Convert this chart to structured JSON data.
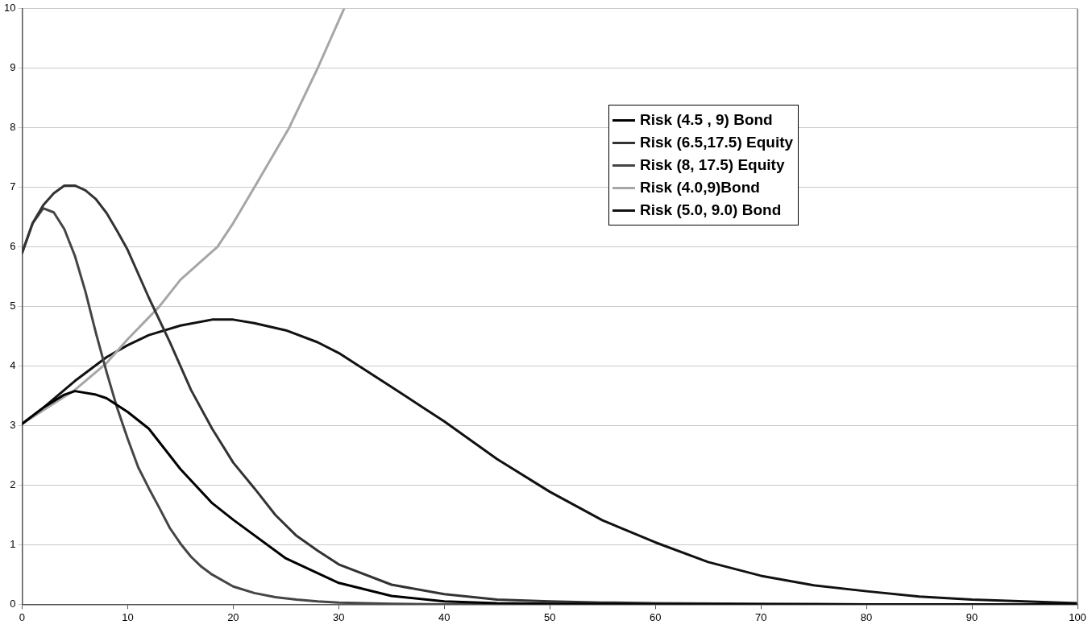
{
  "chart_data": {
    "type": "line",
    "xlim": [
      0,
      100
    ],
    "ylim": [
      0,
      10
    ],
    "xticks": [
      0,
      10,
      20,
      30,
      40,
      50,
      60,
      70,
      80,
      90,
      100
    ],
    "yticks": [
      0,
      1,
      2,
      3,
      4,
      5,
      6,
      7,
      8,
      9,
      10
    ],
    "grid": "y",
    "legend": "top right",
    "marker": "none",
    "line_style": "solid",
    "series": [
      {
        "name": "Risk (4.5 , 9) Bond",
        "color": "#000000",
        "x": [
          0,
          2,
          4,
          5,
          7,
          8,
          10,
          12,
          15,
          18,
          20,
          25,
          30,
          35,
          40,
          45,
          50,
          60,
          70,
          80,
          90,
          100
        ],
        "values": [
          3.03,
          3.3,
          3.52,
          3.58,
          3.52,
          3.46,
          3.23,
          2.95,
          2.27,
          1.7,
          1.42,
          0.77,
          0.36,
          0.14,
          0.05,
          0.02,
          0.01,
          0,
          0,
          0,
          0,
          0
        ]
      },
      {
        "name": "Risk (6.5,17.5) Equity",
        "color": "#333333",
        "x": [
          0,
          1,
          2,
          3,
          4,
          5,
          6,
          7,
          8,
          9,
          10,
          12,
          14,
          16,
          18,
          20,
          22,
          24,
          26,
          28,
          30,
          35,
          40,
          45,
          50,
          55,
          60,
          70,
          80,
          90,
          100
        ],
        "values": [
          5.9,
          6.4,
          6.7,
          6.9,
          7.03,
          7.03,
          6.95,
          6.8,
          6.57,
          6.27,
          5.95,
          5.15,
          4.4,
          3.6,
          2.95,
          2.38,
          1.95,
          1.5,
          1.15,
          0.9,
          0.67,
          0.33,
          0.17,
          0.08,
          0.05,
          0.03,
          0.02,
          0.01,
          0,
          0,
          0
        ]
      },
      {
        "name": "Risk (8, 17.5) Equity",
        "color": "#454545",
        "x": [
          0,
          1,
          2,
          3,
          4,
          5,
          6,
          7,
          8,
          9,
          10,
          11,
          12,
          13,
          14,
          15,
          16,
          17,
          18,
          20,
          22,
          24,
          26,
          28,
          30,
          35,
          40,
          50,
          60,
          70,
          80,
          90,
          100
        ],
        "values": [
          5.9,
          6.4,
          6.65,
          6.58,
          6.3,
          5.85,
          5.25,
          4.55,
          3.9,
          3.3,
          2.78,
          2.3,
          1.95,
          1.62,
          1.28,
          1.02,
          0.8,
          0.63,
          0.5,
          0.3,
          0.19,
          0.12,
          0.08,
          0.05,
          0.03,
          0.01,
          0,
          0,
          0,
          0,
          0,
          0,
          0
        ]
      },
      {
        "name": "Risk (4.0,9)Bond",
        "color": "#a6a6a6",
        "x": [
          0,
          5,
          8,
          10,
          13,
          15,
          18.5,
          20,
          22,
          25.3,
          28,
          30.5
        ],
        "values": [
          3.03,
          3.6,
          4.05,
          4.45,
          5.0,
          5.45,
          6.0,
          6.4,
          7.0,
          8.0,
          9.0,
          10
        ]
      },
      {
        "name": "Risk (5.0, 9.0) Bond",
        "color": "#111111",
        "x": [
          0,
          2,
          5,
          8,
          10,
          12,
          15,
          18,
          20,
          22,
          25,
          28,
          30,
          35,
          40,
          45,
          50,
          55,
          60,
          65,
          70,
          75,
          80,
          85,
          90,
          95,
          100
        ],
        "values": [
          3.03,
          3.3,
          3.75,
          4.15,
          4.35,
          4.52,
          4.68,
          4.78,
          4.78,
          4.72,
          4.6,
          4.4,
          4.22,
          3.65,
          3.07,
          2.44,
          1.89,
          1.41,
          1.04,
          0.71,
          0.48,
          0.32,
          0.22,
          0.13,
          0.08,
          0.05,
          0.02
        ]
      }
    ]
  }
}
